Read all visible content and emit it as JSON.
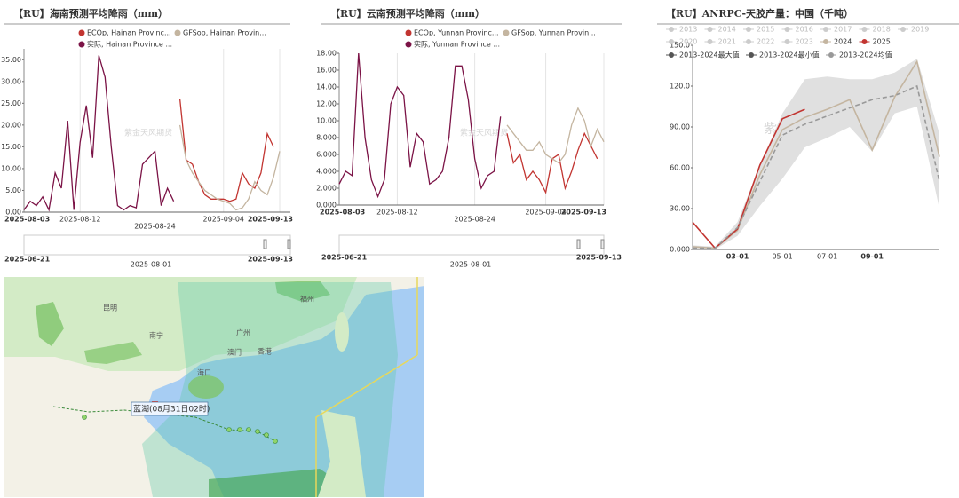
{
  "chart_data": [
    {
      "type": "line",
      "title": "【RU】海南预测平均降雨（mm）",
      "categories": [
        "2025-08-03",
        null,
        null,
        null,
        null,
        null,
        null,
        null,
        null,
        "2025-08-12",
        null,
        null,
        null,
        null,
        null,
        null,
        null,
        null,
        null,
        null,
        null,
        "2025-08-24",
        null,
        null,
        null,
        null,
        null,
        null,
        null,
        null,
        null,
        null,
        "2025-09-04",
        null,
        null,
        null,
        null,
        null,
        null,
        null,
        null,
        "2025-09-13"
      ],
      "series": [
        {
          "name": "ECOp, Hainan Provinc...",
          "color": "#c23531",
          "values": [
            null,
            null,
            null,
            null,
            null,
            null,
            null,
            null,
            null,
            null,
            null,
            null,
            null,
            null,
            null,
            null,
            null,
            null,
            null,
            null,
            null,
            null,
            null,
            null,
            null,
            26,
            12,
            11,
            7,
            4,
            3,
            3,
            3,
            2.5,
            3,
            9,
            6.5,
            5.5,
            9,
            18,
            15,
            null
          ]
        },
        {
          "name": "GFSop, Hainan Provin...",
          "color": "#c4b5a0",
          "values": [
            null,
            null,
            null,
            null,
            null,
            null,
            null,
            null,
            null,
            null,
            null,
            null,
            null,
            null,
            null,
            null,
            null,
            null,
            null,
            null,
            null,
            null,
            null,
            null,
            null,
            20,
            12,
            9,
            7,
            5,
            4,
            3,
            2.5,
            2,
            0.5,
            1,
            3,
            7,
            5,
            4,
            8,
            14
          ]
        },
        {
          "name": "实际, Hainan Province ...",
          "color": "#7b1346",
          "values": [
            0.5,
            2.5,
            1.5,
            3.5,
            0.5,
            9,
            5.5,
            21,
            0.5,
            16,
            24.5,
            12.5,
            36,
            31,
            15,
            1.5,
            0.5,
            1.5,
            1,
            11,
            12.5,
            14,
            1.5,
            5.5,
            2.5,
            null,
            null,
            null,
            null,
            null,
            null,
            null,
            null,
            null,
            null,
            null,
            null,
            null,
            null,
            null,
            null,
            null
          ]
        }
      ],
      "ylim": [
        0,
        37.5
      ],
      "yticks": [
        {
          "value": 0,
          "label": "0.00"
        },
        {
          "value": 5,
          "label": "5.00"
        },
        {
          "value": 10,
          "label": "10.00"
        },
        {
          "value": 15,
          "label": "15.00"
        },
        {
          "value": 20,
          "label": "20.00"
        },
        {
          "value": 25,
          "label": "25.00"
        },
        {
          "value": 30,
          "label": "30.00"
        },
        {
          "value": 35,
          "label": "35.00"
        }
      ],
      "zoom_labels": [
        "2025-06-21",
        "2025-08-01",
        "2025-09-13"
      ],
      "watermark": "紫金天风期货"
    },
    {
      "type": "line",
      "title": "【RU】云南预测平均降雨（mm）",
      "categories": [
        "2025-08-03",
        null,
        null,
        null,
        null,
        null,
        null,
        null,
        null,
        "2025-08-12",
        null,
        null,
        null,
        null,
        null,
        null,
        null,
        null,
        null,
        null,
        null,
        "2025-08-24",
        null,
        null,
        null,
        null,
        null,
        null,
        null,
        null,
        null,
        null,
        "2025-09-04",
        null,
        null,
        null,
        null,
        null,
        null,
        null,
        null,
        "2025-09-13"
      ],
      "series": [
        {
          "name": "ECOp, Yunnan Provinc...",
          "color": "#c23531",
          "values": [
            null,
            null,
            null,
            null,
            null,
            null,
            null,
            null,
            null,
            null,
            null,
            null,
            null,
            null,
            null,
            null,
            null,
            null,
            null,
            null,
            null,
            null,
            null,
            null,
            null,
            null,
            8.5,
            5,
            6,
            3,
            4,
            3,
            1.5,
            5.5,
            6,
            2,
            4,
            6.5,
            8.5,
            7,
            5.5,
            null
          ]
        },
        {
          "name": "GFSop, Yunnan Provin...",
          "color": "#c4b5a0",
          "values": [
            null,
            null,
            null,
            null,
            null,
            null,
            null,
            null,
            null,
            null,
            null,
            null,
            null,
            null,
            null,
            null,
            null,
            null,
            null,
            null,
            null,
            null,
            null,
            null,
            null,
            null,
            9.5,
            8.5,
            7.5,
            6.5,
            6.5,
            7.5,
            6,
            5.5,
            5,
            6,
            9.5,
            11.5,
            10,
            7,
            9,
            7.5
          ]
        },
        {
          "name": "实际, Yunnan Province ...",
          "color": "#7b1346",
          "values": [
            2.5,
            4,
            3.5,
            18,
            8,
            3,
            1,
            3,
            12,
            14,
            13,
            4.5,
            8.5,
            7.5,
            2.5,
            3,
            4,
            8,
            16.5,
            16.5,
            12.5,
            5.5,
            2,
            3.5,
            4,
            10.5,
            null,
            null,
            null,
            null,
            null,
            null,
            null,
            null,
            null,
            null,
            null,
            null,
            null,
            null,
            null,
            null
          ]
        }
      ],
      "ylim": [
        0,
        18
      ],
      "yticks": [
        {
          "value": 0,
          "label": "0.000"
        },
        {
          "value": 2,
          "label": "2.000"
        },
        {
          "value": 4,
          "label": "4.000"
        },
        {
          "value": 6,
          "label": "6.000"
        },
        {
          "value": 8,
          "label": "8.000"
        },
        {
          "value": 10,
          "label": "10.00"
        },
        {
          "value": 12,
          "label": "12.00"
        },
        {
          "value": 14,
          "label": "14.00"
        },
        {
          "value": 16,
          "label": "16.00"
        },
        {
          "value": 18,
          "label": "18.00"
        }
      ],
      "zoom_labels": [
        "2025-06-21",
        "2025-08-01",
        "2025-09-13"
      ],
      "watermark": "紫金天风期货"
    },
    {
      "type": "line",
      "title": "【RU】ANRPC-天胶产量：中国（千吨）",
      "categories": [
        null,
        null,
        "03-01",
        null,
        "05-01",
        null,
        "07-01",
        null,
        "09-01",
        null,
        null,
        null
      ],
      "hidden_series": [
        "2013",
        "2014",
        "2015",
        "2016",
        "2017",
        "2018",
        "2019",
        "2020",
        "2021",
        "2022",
        "2023"
      ],
      "hidden_color": "#cccccc",
      "series": [
        {
          "name": "2024",
          "color": "#c4b5a0",
          "values": [
            2,
            1,
            14,
            55,
            88,
            97,
            103,
            110,
            73,
            112,
            138,
            68
          ]
        },
        {
          "name": "2025",
          "color": "#c23531",
          "values": [
            20,
            1,
            15,
            62,
            96,
            103,
            null,
            null,
            null,
            null,
            null,
            null
          ]
        },
        {
          "name": "2013-2024最大值",
          "color": "#555555",
          "area": "#e0e0e0",
          "values": [
            3,
            2,
            20,
            62,
            100,
            125,
            127,
            125,
            125,
            130,
            140,
            85
          ]
        },
        {
          "name": "2013-2024最小值",
          "color": "#555555",
          "area": "#ffffff",
          "values": [
            0,
            0,
            10,
            32,
            52,
            75,
            82,
            90,
            72,
            100,
            105,
            30
          ]
        },
        {
          "name": "2013-2024均值",
          "color": "#999999",
          "dash": true,
          "values": [
            1,
            1,
            16,
            50,
            84,
            92,
            98,
            104,
            110,
            113,
            120,
            50
          ]
        }
      ],
      "ylim": [
        0,
        150
      ],
      "yticks": [
        {
          "value": 0,
          "label": "0.000"
        },
        {
          "value": 30,
          "label": "30.00"
        },
        {
          "value": 60,
          "label": "60.00"
        },
        {
          "value": 90,
          "label": "90.00"
        },
        {
          "value": 120,
          "label": "120.0"
        },
        {
          "value": 150,
          "label": "150.0"
        }
      ],
      "watermark": "紫金天风期货"
    }
  ],
  "map": {
    "labels": [
      "昆明",
      "南宁",
      "广州",
      "澳门",
      "香港",
      "海口",
      "福州"
    ],
    "typhoon_label": "蓝湖(08月31日02时)"
  }
}
